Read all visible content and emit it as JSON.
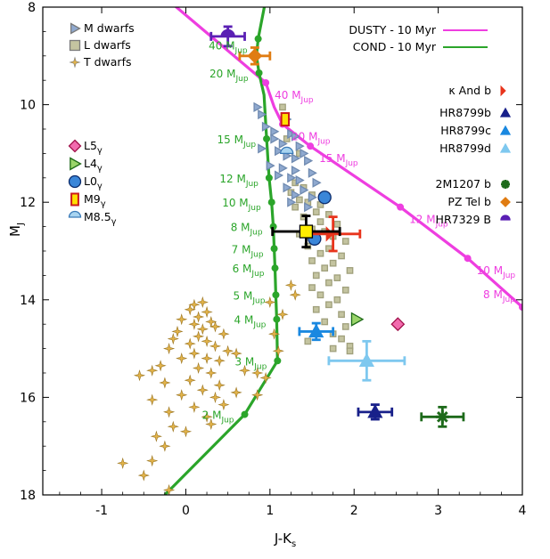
{
  "chart_data": {
    "type": "scatter",
    "xlabel": "J-K",
    "xlabel_sub": "s",
    "ylabel": "M",
    "ylabel_sub": "J",
    "xlim": [
      -1.7,
      4.0
    ],
    "ylim": [
      18.0,
      8.0
    ],
    "xticks": [
      -1,
      0,
      1,
      2,
      3,
      4
    ],
    "yticks": [
      8,
      10,
      12,
      14,
      16,
      18
    ],
    "colors": {
      "dusty": "#ee3ee0",
      "cond": "#2ba52a",
      "m_dwarf": "#8fa9cf",
      "l_dwarf": "#c4c4a0",
      "t_dwarf": "#e2b34a"
    },
    "tracks": [
      {
        "name": "DUSTY - 10 Myr",
        "color": "#ee3ee0",
        "points": [
          [
            -0.25,
            7.8
          ],
          [
            0.95,
            9.55
          ],
          [
            1.05,
            10.05
          ],
          [
            1.15,
            10.4
          ],
          [
            1.48,
            10.85
          ],
          [
            2.55,
            12.1
          ],
          [
            3.35,
            13.15
          ],
          [
            4.0,
            14.15
          ]
        ]
      },
      {
        "name": "COND - 10 Myr",
        "color": "#2ba52a",
        "points": [
          [
            0.95,
            7.85
          ],
          [
            0.86,
            8.65
          ],
          [
            0.84,
            9.0
          ],
          [
            0.87,
            9.35
          ],
          [
            0.93,
            9.8
          ],
          [
            0.96,
            10.7
          ],
          [
            0.99,
            11.5
          ],
          [
            1.02,
            12.0
          ],
          [
            1.04,
            12.5
          ],
          [
            1.05,
            12.95
          ],
          [
            1.06,
            13.35
          ],
          [
            1.07,
            13.9
          ],
          [
            1.08,
            14.4
          ],
          [
            1.09,
            15.25
          ],
          [
            0.7,
            16.35
          ],
          [
            -0.25,
            18.0
          ]
        ]
      }
    ],
    "cond_mass_points": [
      {
        "x": 0.86,
        "y": 8.65,
        "label": "40 M",
        "sub": "Jup"
      },
      {
        "x": 0.87,
        "y": 9.35,
        "label": "20 M",
        "sub": "Jup"
      },
      {
        "x": 0.96,
        "y": 10.7,
        "label": "15 M",
        "sub": "Jup"
      },
      {
        "x": 0.99,
        "y": 11.5,
        "label": "12 M",
        "sub": "Jup"
      },
      {
        "x": 1.02,
        "y": 12.0,
        "label": "10 M",
        "sub": "Jup"
      },
      {
        "x": 1.04,
        "y": 12.5,
        "label": "8 M",
        "sub": "Jup"
      },
      {
        "x": 1.05,
        "y": 12.95,
        "label": "7 M",
        "sub": "Jup"
      },
      {
        "x": 1.06,
        "y": 13.35,
        "label": "6 M",
        "sub": "Jup"
      },
      {
        "x": 1.07,
        "y": 13.9,
        "label": "5 M",
        "sub": "Jup"
      },
      {
        "x": 1.08,
        "y": 14.4,
        "label": "4 M",
        "sub": "Jup"
      },
      {
        "x": 1.09,
        "y": 15.25,
        "label": "3 M",
        "sub": "Jup"
      },
      {
        "x": 0.7,
        "y": 16.35,
        "label": "2 M",
        "sub": "Jup"
      }
    ],
    "dusty_mass_points": [
      {
        "x": 0.95,
        "y": 9.55,
        "label": "40 M",
        "sub": "Jup"
      },
      {
        "x": 1.15,
        "y": 10.4,
        "label": "20 M",
        "sub": "Jup"
      },
      {
        "x": 1.48,
        "y": 10.85,
        "label": "15 M",
        "sub": "Jup"
      },
      {
        "x": 2.55,
        "y": 12.1,
        "label": "12 M",
        "sub": "Jup"
      },
      {
        "x": 3.35,
        "y": 13.15,
        "label": "10 M",
        "sub": "Jup"
      },
      {
        "x": 4.0,
        "y": 14.15,
        "label": "8 M",
        "sub": "Jup"
      }
    ],
    "m_dwarfs": [
      [
        0.85,
        10.05
      ],
      [
        0.9,
        10.2
      ],
      [
        1.2,
        10.3
      ],
      [
        0.95,
        10.45
      ],
      [
        1.05,
        10.55
      ],
      [
        1.25,
        10.6
      ],
      [
        1.3,
        10.65
      ],
      [
        1.05,
        10.7
      ],
      [
        1.15,
        10.8
      ],
      [
        1.35,
        10.85
      ],
      [
        0.9,
        10.9
      ],
      [
        1.1,
        10.95
      ],
      [
        1.4,
        11.0
      ],
      [
        1.2,
        11.05
      ],
      [
        1.3,
        11.1
      ],
      [
        1.45,
        11.15
      ],
      [
        1.0,
        11.25
      ],
      [
        1.15,
        11.3
      ],
      [
        1.3,
        11.35
      ],
      [
        1.5,
        11.4
      ],
      [
        1.1,
        11.45
      ],
      [
        1.25,
        11.5
      ],
      [
        1.35,
        11.55
      ],
      [
        1.55,
        11.6
      ],
      [
        1.2,
        11.7
      ],
      [
        1.4,
        11.75
      ],
      [
        1.3,
        11.85
      ],
      [
        1.5,
        11.9
      ],
      [
        1.25,
        12.0
      ],
      [
        1.45,
        12.1
      ]
    ],
    "l_dwarfs": [
      [
        1.15,
        10.05
      ],
      [
        1.2,
        10.7
      ],
      [
        1.35,
        11.0
      ],
      [
        1.3,
        11.6
      ],
      [
        1.4,
        11.7
      ],
      [
        1.25,
        11.8
      ],
      [
        1.5,
        11.85
      ],
      [
        1.35,
        11.95
      ],
      [
        1.45,
        12.0
      ],
      [
        1.6,
        12.05
      ],
      [
        1.3,
        12.1
      ],
      [
        1.55,
        12.2
      ],
      [
        1.7,
        12.25
      ],
      [
        1.4,
        12.3
      ],
      [
        1.6,
        12.4
      ],
      [
        1.8,
        12.45
      ],
      [
        1.5,
        12.55
      ],
      [
        1.65,
        12.6
      ],
      [
        1.35,
        12.65
      ],
      [
        1.75,
        12.7
      ],
      [
        1.55,
        12.75
      ],
      [
        1.9,
        12.8
      ],
      [
        1.45,
        12.9
      ],
      [
        1.7,
        12.95
      ],
      [
        1.6,
        13.05
      ],
      [
        1.85,
        13.1
      ],
      [
        1.5,
        13.2
      ],
      [
        1.75,
        13.25
      ],
      [
        1.65,
        13.35
      ],
      [
        1.95,
        13.4
      ],
      [
        1.55,
        13.5
      ],
      [
        1.8,
        13.55
      ],
      [
        1.7,
        13.65
      ],
      [
        1.5,
        13.75
      ],
      [
        1.9,
        13.8
      ],
      [
        1.6,
        13.9
      ],
      [
        1.8,
        14.0
      ],
      [
        1.7,
        14.1
      ],
      [
        1.55,
        14.2
      ],
      [
        1.85,
        14.3
      ],
      [
        1.65,
        14.45
      ],
      [
        1.9,
        14.55
      ],
      [
        1.75,
        14.7
      ],
      [
        1.85,
        14.8
      ],
      [
        1.95,
        14.95
      ],
      [
        1.45,
        14.85
      ],
      [
        1.75,
        15.0
      ],
      [
        1.95,
        15.05
      ]
    ],
    "t_dwarfs": [
      [
        0.1,
        14.1
      ],
      [
        0.2,
        14.05
      ],
      [
        0.05,
        14.2
      ],
      [
        0.25,
        14.25
      ],
      [
        0.15,
        14.35
      ],
      [
        -0.05,
        14.4
      ],
      [
        0.3,
        14.45
      ],
      [
        0.1,
        14.5
      ],
      [
        0.2,
        14.6
      ],
      [
        -0.1,
        14.65
      ],
      [
        0.35,
        14.55
      ],
      [
        0.45,
        14.7
      ],
      [
        0.15,
        14.75
      ],
      [
        -0.15,
        14.8
      ],
      [
        0.25,
        14.85
      ],
      [
        0.05,
        14.9
      ],
      [
        0.35,
        14.95
      ],
      [
        -0.2,
        15.0
      ],
      [
        0.5,
        15.05
      ],
      [
        0.6,
        15.1
      ],
      [
        0.1,
        15.1
      ],
      [
        -0.05,
        15.2
      ],
      [
        0.25,
        15.2
      ],
      [
        0.4,
        15.25
      ],
      [
        -0.3,
        15.35
      ],
      [
        0.15,
        15.4
      ],
      [
        -0.4,
        15.45
      ],
      [
        0.3,
        15.5
      ],
      [
        0.7,
        15.45
      ],
      [
        0.85,
        15.5
      ],
      [
        0.95,
        15.6
      ],
      [
        -0.55,
        15.55
      ],
      [
        0.05,
        15.65
      ],
      [
        -0.25,
        15.7
      ],
      [
        0.4,
        15.75
      ],
      [
        0.2,
        15.85
      ],
      [
        0.6,
        15.9
      ],
      [
        -0.05,
        15.95
      ],
      [
        0.85,
        15.95
      ],
      [
        0.35,
        16.0
      ],
      [
        -0.4,
        16.05
      ],
      [
        0.45,
        16.15
      ],
      [
        0.1,
        16.2
      ],
      [
        -0.2,
        16.3
      ],
      [
        0.25,
        16.4
      ],
      [
        0.3,
        16.55
      ],
      [
        -0.15,
        16.6
      ],
      [
        0.0,
        16.7
      ],
      [
        -0.35,
        16.8
      ],
      [
        -0.25,
        17.0
      ],
      [
        -0.4,
        17.3
      ],
      [
        -0.75,
        17.35
      ],
      [
        -0.5,
        17.6
      ],
      [
        -0.2,
        17.9
      ],
      [
        1.0,
        14.05
      ],
      [
        1.15,
        14.3
      ],
      [
        1.05,
        14.7
      ],
      [
        1.1,
        15.05
      ],
      [
        1.25,
        13.7
      ],
      [
        1.3,
        13.9
      ]
    ],
    "young_objects": [
      {
        "name": "L5",
        "sub": "γ",
        "x": 2.52,
        "y": 14.5,
        "shape": "diamond",
        "fill": "#f26bae",
        "stroke": "#a0104a"
      },
      {
        "name": "L4",
        "sub": "γ",
        "x": 2.03,
        "y": 14.4,
        "shape": "triangle-right",
        "fill": "#9ad46a",
        "stroke": "#1e6a18"
      },
      {
        "name": "L0",
        "sub": "γ",
        "x": 1.65,
        "y": 11.9,
        "shape": "circle",
        "fill": "#3a86d8",
        "stroke": "#0a2a6a"
      },
      {
        "name": "L0",
        "sub": "γ",
        "x": 1.53,
        "y": 12.75,
        "shape": "circle",
        "fill": "#3a86d8",
        "stroke": "#0a2a6a"
      },
      {
        "name": "M9",
        "sub": "γ",
        "x": 1.18,
        "y": 10.3,
        "shape": "rect",
        "fill": "#ffe000",
        "stroke": "#cc1a1a"
      },
      {
        "name": "M8.5",
        "sub": "γ",
        "x": 1.2,
        "y": 11.0,
        "shape": "half-circle",
        "fill": "#a8d4f0",
        "stroke": "#3a7ab8"
      }
    ],
    "companions": [
      {
        "name": "κ And b",
        "x": 1.75,
        "y": 12.65,
        "xerr": 0.32,
        "yerr": 0.35,
        "shape": "bowtie",
        "color": "#e8341c"
      },
      {
        "name": "HR8799b",
        "x": 2.25,
        "y": 16.3,
        "xerr": 0.2,
        "yerr": 0.15,
        "shape": "triangle",
        "color": "#18208a"
      },
      {
        "name": "HR8799c",
        "x": 1.55,
        "y": 14.65,
        "xerr": 0.2,
        "yerr": 0.17,
        "shape": "triangle",
        "color": "#1a88e0"
      },
      {
        "name": "HR8799d",
        "x": 2.15,
        "y": 15.25,
        "xerr": 0.45,
        "yerr": 0.4,
        "shape": "triangle",
        "color": "#7ec8ef"
      },
      {
        "name": "2M1207 b",
        "x": 3.05,
        "y": 16.4,
        "xerr": 0.25,
        "yerr": 0.2,
        "shape": "asterisk",
        "color": "#1d6a1a"
      },
      {
        "name": "PZ Tel b",
        "x": 0.82,
        "y": 9.0,
        "xerr": 0.18,
        "yerr": 0.17,
        "shape": "diamond",
        "color": "#e07c12"
      },
      {
        "name": "HR7329 B",
        "x": 0.5,
        "y": 8.6,
        "xerr": 0.2,
        "yerr": 0.2,
        "shape": "half-circle",
        "color": "#5a1fb4"
      },
      {
        "name": "",
        "x": 1.43,
        "y": 12.6,
        "xerr": 0.4,
        "yerr": 0.32,
        "shape": "square",
        "color": "#000000",
        "fill": "#ffee00"
      }
    ],
    "legend_dwarfs": [
      {
        "label": "M dwarfs",
        "shape": "triangle-right",
        "color": "#8fa9cf"
      },
      {
        "label": "L dwarfs",
        "shape": "square",
        "color": "#c4c4a0"
      },
      {
        "label": "T dwarfs",
        "shape": "star",
        "color": "#e2b34a"
      }
    ],
    "legend_young": [
      {
        "label": "L5",
        "sub": "γ",
        "shape": "diamond",
        "fill": "#f26bae",
        "stroke": "#a0104a"
      },
      {
        "label": "L4",
        "sub": "γ",
        "shape": "triangle-right",
        "fill": "#9ad46a",
        "stroke": "#1e6a18"
      },
      {
        "label": "L0",
        "sub": "γ",
        "shape": "circle",
        "fill": "#3a86d8",
        "stroke": "#0a2a6a"
      },
      {
        "label": "M9",
        "sub": "γ",
        "shape": "rect",
        "fill": "#ffe000",
        "stroke": "#cc1a1a"
      },
      {
        "label": "M8.5",
        "sub": "γ",
        "shape": "half-circle",
        "fill": "#a8d4f0",
        "stroke": "#3a7ab8"
      }
    ],
    "legend_tracks": [
      {
        "label": "DUSTY - 10 Myr",
        "color": "#ee3ee0"
      },
      {
        "label": "COND - 10 Myr",
        "color": "#2ba52a"
      }
    ],
    "legend_companions": [
      {
        "label": "κ And b",
        "shape": "bowtie",
        "color": "#e8341c"
      },
      {
        "label": "HR8799b",
        "shape": "triangle",
        "color": "#18208a"
      },
      {
        "label": "HR8799c",
        "shape": "triangle",
        "color": "#1a88e0"
      },
      {
        "label": "HR8799d",
        "shape": "triangle",
        "color": "#7ec8ef"
      },
      {
        "label": "2M1207 b",
        "shape": "asterisk",
        "color": "#1d6a1a"
      },
      {
        "label": "PZ Tel b",
        "shape": "diamond",
        "color": "#e07c12"
      },
      {
        "label": "HR7329 B",
        "shape": "half-circle",
        "color": "#5a1fb4"
      }
    ]
  }
}
